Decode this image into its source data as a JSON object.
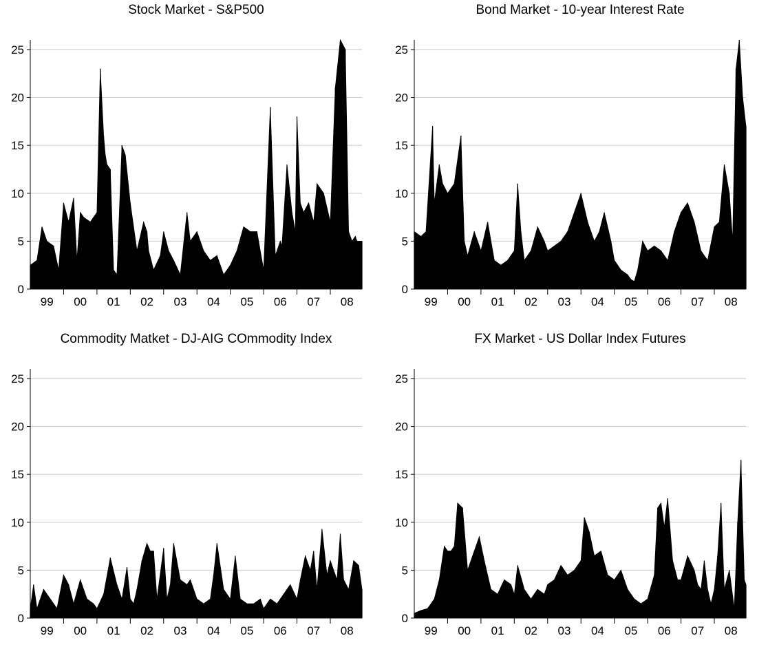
{
  "chart_data": [
    {
      "type": "area",
      "title": "Stock Market - S&P500",
      "xlabel": "",
      "ylabel": "",
      "ylim": [
        0,
        26
      ],
      "yticks": [
        "0",
        "5",
        "10",
        "15",
        "20",
        "25"
      ],
      "xticks": [
        "99",
        "00",
        "01",
        "02",
        "03",
        "04",
        "05",
        "06",
        "07",
        "08"
      ],
      "grid": "horizontal",
      "x_year_start": 1999,
      "x_year_end": 2008.95,
      "series": [
        {
          "x": [
            1999.0,
            1999.2,
            1999.35,
            1999.5,
            1999.7,
            1999.85,
            2000.0,
            2000.15,
            2000.3,
            2000.4,
            2000.5,
            2000.6,
            2000.8,
            2001.0,
            2001.1,
            2001.2,
            2001.25,
            2001.3,
            2001.4,
            2001.5,
            2001.6,
            2001.75,
            2001.85,
            2002.0,
            2002.2,
            2002.4,
            2002.5,
            2002.55,
            2002.7,
            2002.9,
            2003.0,
            2003.15,
            2003.3,
            2003.5,
            2003.7,
            2003.8,
            2004.0,
            2004.2,
            2004.4,
            2004.6,
            2004.7,
            2004.8,
            2005.0,
            2005.2,
            2005.4,
            2005.6,
            2005.8,
            2006.0,
            2006.2,
            2006.35,
            2006.5,
            2006.55,
            2006.7,
            2006.85,
            2006.95,
            2007.0,
            2007.1,
            2007.2,
            2007.35,
            2007.5,
            2007.6,
            2007.8,
            2008.0,
            2008.15,
            2008.3,
            2008.45,
            2008.55,
            2008.65,
            2008.75,
            2008.8,
            2008.9,
            2008.95
          ],
          "y": [
            2.5,
            3.0,
            6.5,
            5.0,
            4.5,
            2.0,
            9.0,
            7.0,
            9.5,
            3.0,
            8.0,
            7.5,
            7.0,
            8.0,
            23.0,
            16.0,
            14.0,
            13.0,
            12.5,
            2.0,
            1.5,
            15.0,
            14.0,
            9.0,
            4.0,
            7.0,
            6.0,
            4.0,
            2.0,
            3.5,
            6.0,
            4.0,
            3.0,
            1.5,
            8.0,
            5.0,
            6.0,
            4.0,
            3.0,
            3.5,
            2.5,
            1.5,
            2.5,
            4.0,
            6.5,
            6.0,
            6.0,
            2.0,
            19.0,
            3.5,
            5.0,
            4.5,
            13.0,
            8.0,
            6.0,
            18.0,
            9.0,
            8.0,
            9.0,
            7.0,
            11.0,
            10.0,
            7.0,
            21.0,
            26.0,
            25.0,
            6.0,
            5.0,
            5.5,
            5.0,
            5.0,
            5.0
          ]
        }
      ]
    },
    {
      "type": "area",
      "title": "Bond Market - 10-year Interest Rate",
      "xlabel": "",
      "ylabel": "",
      "ylim": [
        0,
        26
      ],
      "yticks": [
        "0",
        "5",
        "10",
        "15",
        "20",
        "25"
      ],
      "xticks": [
        "99",
        "00",
        "01",
        "02",
        "03",
        "04",
        "05",
        "06",
        "07",
        "08"
      ],
      "grid": "horizontal",
      "x_year_start": 1999,
      "x_year_end": 2008.95,
      "series": [
        {
          "x": [
            1999.0,
            1999.2,
            1999.35,
            1999.55,
            1999.6,
            1999.75,
            1999.85,
            2000.0,
            2000.2,
            2000.4,
            2000.5,
            2000.6,
            2000.8,
            2001.0,
            2001.2,
            2001.4,
            2001.6,
            2001.8,
            2002.0,
            2002.1,
            2002.2,
            2002.3,
            2002.5,
            2002.7,
            2002.9,
            2003.0,
            2003.2,
            2003.4,
            2003.6,
            2003.8,
            2004.0,
            2004.2,
            2004.4,
            2004.55,
            2004.7,
            2004.9,
            2005.0,
            2005.2,
            2005.4,
            2005.5,
            2005.6,
            2005.7,
            2005.85,
            2006.0,
            2006.2,
            2006.4,
            2006.6,
            2006.8,
            2007.0,
            2007.2,
            2007.4,
            2007.6,
            2007.8,
            2008.0,
            2008.15,
            2008.3,
            2008.45,
            2008.55,
            2008.65,
            2008.75,
            2008.85,
            2008.95
          ],
          "y": [
            6.0,
            5.5,
            6.0,
            17.0,
            9.0,
            13.0,
            11.0,
            10.0,
            11.0,
            16.0,
            5.0,
            3.5,
            6.0,
            4.0,
            7.0,
            3.0,
            2.5,
            3.0,
            4.0,
            11.0,
            6.0,
            3.0,
            4.0,
            6.5,
            5.0,
            4.0,
            4.5,
            5.0,
            6.0,
            8.0,
            10.0,
            7.0,
            5.0,
            6.0,
            8.0,
            5.0,
            3.0,
            2.0,
            1.5,
            1.0,
            0.8,
            2.0,
            5.0,
            4.0,
            4.5,
            4.0,
            3.0,
            6.0,
            8.0,
            9.0,
            7.0,
            4.0,
            3.0,
            6.5,
            7.0,
            13.0,
            10.0,
            5.0,
            23.0,
            26.0,
            20.0,
            17.0
          ]
        }
      ]
    },
    {
      "type": "area",
      "title": "Commodity Matket - DJ-AIG COmmodity Index",
      "xlabel": "",
      "ylabel": "",
      "ylim": [
        0,
        26
      ],
      "yticks": [
        "0",
        "5",
        "10",
        "15",
        "20",
        "25"
      ],
      "xticks": [
        "99",
        "00",
        "01",
        "02",
        "03",
        "04",
        "05",
        "06",
        "07",
        "08"
      ],
      "grid": "horizontal",
      "x_year_start": 1999,
      "x_year_end": 2008.95,
      "series": [
        {
          "x": [
            1999.0,
            1999.1,
            1999.2,
            1999.4,
            1999.6,
            1999.8,
            2000.0,
            2000.15,
            2000.3,
            2000.5,
            2000.7,
            2000.9,
            2001.0,
            2001.2,
            2001.4,
            2001.6,
            2001.75,
            2001.9,
            2002.0,
            2002.1,
            2002.2,
            2002.35,
            2002.5,
            2002.6,
            2002.7,
            2002.8,
            2003.0,
            2003.1,
            2003.2,
            2003.3,
            2003.5,
            2003.7,
            2003.8,
            2004.0,
            2004.2,
            2004.4,
            2004.5,
            2004.6,
            2004.8,
            2005.0,
            2005.15,
            2005.3,
            2005.5,
            2005.7,
            2005.9,
            2006.0,
            2006.2,
            2006.4,
            2006.6,
            2006.8,
            2007.0,
            2007.1,
            2007.25,
            2007.4,
            2007.5,
            2007.6,
            2007.75,
            2007.9,
            2008.0,
            2008.1,
            2008.2,
            2008.3,
            2008.4,
            2008.55,
            2008.7,
            2008.85,
            2008.95
          ],
          "y": [
            1.0,
            3.5,
            1.0,
            3.0,
            2.0,
            1.0,
            4.5,
            3.5,
            1.5,
            4.0,
            2.0,
            1.5,
            1.0,
            2.5,
            6.3,
            3.5,
            2.0,
            5.3,
            2.0,
            1.5,
            3.0,
            6.0,
            7.8,
            7.0,
            7.0,
            2.0,
            7.3,
            2.0,
            3.5,
            7.8,
            4.0,
            3.5,
            4.0,
            2.0,
            1.5,
            2.0,
            4.5,
            7.8,
            3.0,
            2.0,
            6.5,
            2.0,
            1.5,
            1.5,
            2.0,
            1.0,
            2.0,
            1.5,
            2.5,
            3.5,
            2.0,
            4.0,
            6.5,
            5.0,
            7.0,
            3.0,
            9.3,
            4.5,
            6.0,
            5.0,
            4.0,
            8.8,
            4.0,
            3.0,
            6.0,
            5.5,
            3.0
          ]
        }
      ]
    },
    {
      "type": "area",
      "title": "FX Market - US Dollar Index Futures",
      "xlabel": "",
      "ylabel": "",
      "ylim": [
        0,
        26
      ],
      "yticks": [
        "0",
        "5",
        "10",
        "15",
        "20",
        "25"
      ],
      "xticks": [
        "99",
        "00",
        "01",
        "02",
        "03",
        "04",
        "05",
        "06",
        "07",
        "08"
      ],
      "grid": "horizontal",
      "x_year_start": 1999,
      "x_year_end": 2008.95,
      "series": [
        {
          "x": [
            1999.0,
            1999.2,
            1999.4,
            1999.6,
            1999.75,
            1999.9,
            2000.0,
            2000.1,
            2000.2,
            2000.3,
            2000.45,
            2000.6,
            2000.8,
            2000.95,
            2001.1,
            2001.3,
            2001.5,
            2001.7,
            2001.9,
            2002.0,
            2002.1,
            2002.3,
            2002.5,
            2002.7,
            2002.9,
            2003.0,
            2003.2,
            2003.4,
            2003.6,
            2003.8,
            2004.0,
            2004.1,
            2004.25,
            2004.4,
            2004.6,
            2004.8,
            2005.0,
            2005.2,
            2005.4,
            2005.6,
            2005.8,
            2006.0,
            2006.2,
            2006.3,
            2006.4,
            2006.5,
            2006.6,
            2006.75,
            2006.9,
            2007.0,
            2007.2,
            2007.4,
            2007.5,
            2007.6,
            2007.7,
            2007.8,
            2007.9,
            2008.0,
            2008.1,
            2008.2,
            2008.3,
            2008.45,
            2008.6,
            2008.7,
            2008.8,
            2008.9,
            2008.95
          ],
          "y": [
            0.5,
            0.8,
            1.0,
            2.0,
            4.0,
            7.5,
            7.0,
            7.0,
            7.5,
            12.0,
            11.5,
            5.0,
            7.0,
            8.5,
            6.0,
            3.0,
            2.5,
            4.0,
            3.5,
            2.5,
            5.5,
            3.0,
            2.0,
            3.0,
            2.5,
            3.5,
            4.0,
            5.5,
            4.5,
            5.0,
            6.0,
            10.5,
            9.0,
            6.5,
            7.0,
            4.5,
            4.0,
            5.0,
            3.0,
            2.0,
            1.5,
            2.0,
            4.5,
            11.5,
            12.0,
            9.5,
            12.5,
            6.0,
            4.0,
            4.0,
            6.5,
            5.0,
            3.5,
            3.0,
            6.0,
            3.0,
            1.5,
            3.0,
            6.5,
            12.0,
            3.0,
            5.0,
            1.0,
            10.0,
            16.5,
            4.0,
            3.5
          ]
        }
      ]
    }
  ]
}
